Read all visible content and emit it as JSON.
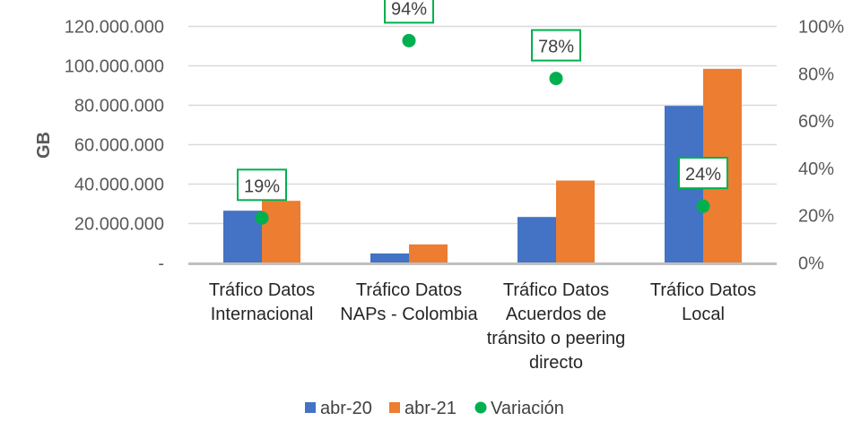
{
  "chart_data": {
    "type": "bar",
    "title": "",
    "ylabel": "GB",
    "ylim": [
      0,
      120000000
    ],
    "y2lim": [
      0,
      1
    ],
    "yticks": [
      "-",
      "20.000.000",
      "40.000.000",
      "60.000.000",
      "80.000.000",
      "100.000.000",
      "120.000.000"
    ],
    "y2ticks": [
      "0%",
      "20%",
      "40%",
      "60%",
      "80%",
      "100%"
    ],
    "categories": [
      [
        "Tráfico Datos",
        "Internacional"
      ],
      [
        "Tráfico Datos",
        "NAPs - Colombia"
      ],
      [
        "Tráfico Datos",
        "Acuerdos de",
        "tránsito o peering",
        "directo"
      ],
      [
        "Tráfico Datos",
        "Local"
      ]
    ],
    "series": [
      {
        "name": "abr-20",
        "type": "bar",
        "axis": "left",
        "color": "#4472C4",
        "values": [
          26500000,
          4800000,
          23300000,
          79700000
        ]
      },
      {
        "name": "abr-21",
        "type": "bar",
        "axis": "right-none",
        "color": "#ED7D31",
        "values": [
          31500000,
          9400000,
          41800000,
          98500000
        ]
      },
      {
        "name": "Variación",
        "type": "scatter",
        "axis": "right",
        "color": "#00B050",
        "values": [
          0.19,
          0.94,
          0.78,
          0.24
        ],
        "labels": [
          "19%",
          "94%",
          "78%",
          "24%"
        ]
      }
    ],
    "grid": true,
    "legend": "bottom"
  }
}
